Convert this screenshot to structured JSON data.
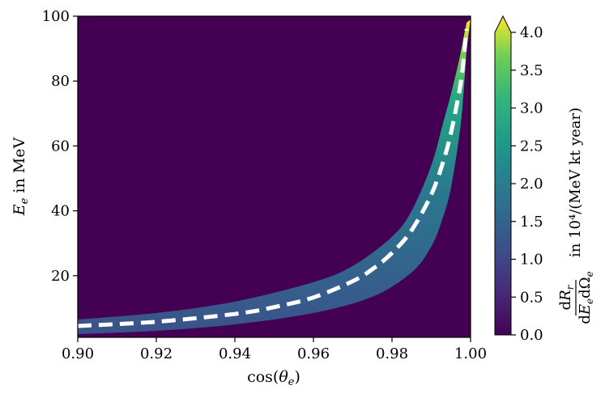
{
  "chart_data": {
    "type": "heatmap",
    "title": "",
    "xlabel": "cos(θe)",
    "ylabel": "Ee in MeV",
    "xlim": [
      0.9,
      1.0
    ],
    "ylim": [
      1,
      100
    ],
    "xticks": [
      "0.90",
      "0.92",
      "0.94",
      "0.96",
      "0.98",
      "1.00"
    ],
    "yticks": [
      "20",
      "40",
      "60",
      "80",
      "100"
    ],
    "colormap": "viridis",
    "background_color": "#440154",
    "dashed_line_color": "#ffffff",
    "colorbar": {
      "label_numerator": "dRr",
      "label_denominator": "dEe dΩe",
      "label_units": "in 10⁴/(MeV kt year)",
      "range": [
        0.0,
        4.0
      ],
      "extend": "max",
      "ticks": [
        "0.0",
        "0.5",
        "1.0",
        "1.5",
        "2.0",
        "2.5",
        "3.0",
        "3.5",
        "4.0"
      ]
    },
    "series": [
      {
        "type": "dashed_line",
        "x": [
          0.9,
          0.92,
          0.94,
          0.95,
          0.96,
          0.97,
          0.975,
          0.98,
          0.985,
          0.99,
          0.993,
          0.995,
          0.997,
          0.998,
          0.999
        ],
        "y": [
          4.5,
          5.8,
          8.2,
          10.3,
          13.3,
          18.3,
          22.0,
          27.0,
          34.0,
          45.0,
          55.0,
          64.0,
          76.0,
          84.0,
          96.0
        ]
      }
    ],
    "band": {
      "lower": {
        "x": [
          0.9,
          0.92,
          0.94,
          0.96,
          0.975,
          0.985,
          0.99,
          0.993,
          0.995,
          0.997,
          0.998,
          0.999
        ],
        "y": [
          2.0,
          3.0,
          5.0,
          8.5,
          13.5,
          21.0,
          29.0,
          38.0,
          47.0,
          62.0,
          73.0,
          90.0
        ]
      },
      "upper": {
        "x": [
          0.9,
          0.92,
          0.94,
          0.96,
          0.97,
          0.98,
          0.985,
          0.99,
          0.993,
          0.995,
          0.997,
          0.998,
          0.999
        ],
        "y": [
          6.5,
          8.5,
          12.0,
          18.0,
          23.0,
          32.0,
          40.0,
          54.0,
          67.0,
          76.0,
          86.0,
          92.0,
          98.0
        ]
      }
    }
  }
}
